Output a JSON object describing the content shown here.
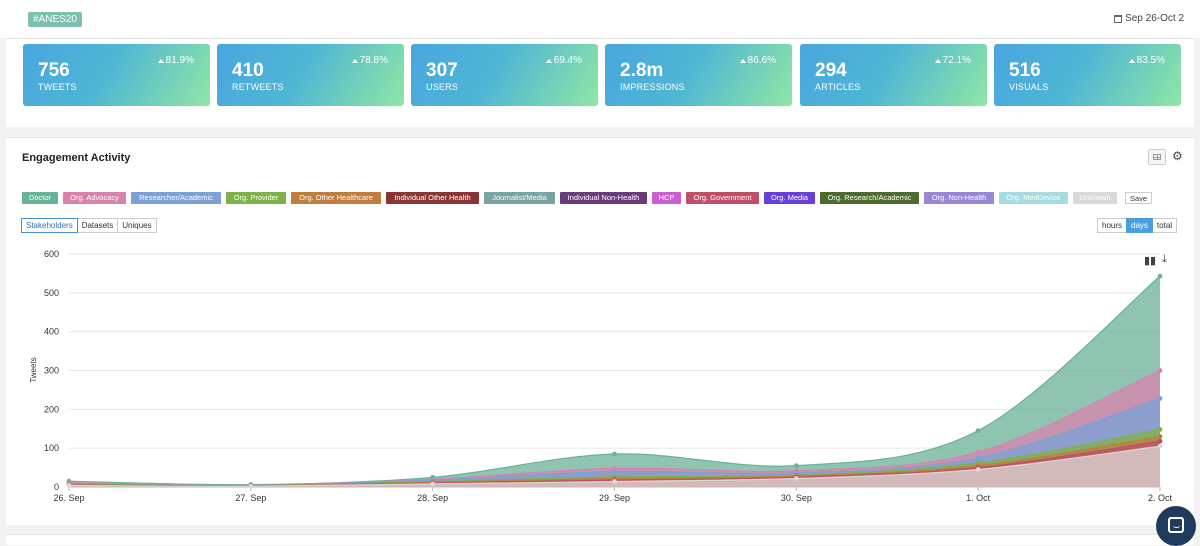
{
  "header": {
    "hashtag": "#ANES20",
    "date_range": "Sep 26-Oct 2",
    "calendar_icon": "calendar-icon"
  },
  "stats": [
    {
      "value": "756",
      "label": "TWEETS",
      "change": "81.9%"
    },
    {
      "value": "410",
      "label": "RETWEETS",
      "change": "78.8%"
    },
    {
      "value": "307",
      "label": "USERS",
      "change": "69.4%"
    },
    {
      "value": "2.8m",
      "label": "IMPRESSIONS",
      "change": "86.6%"
    },
    {
      "value": "294",
      "label": "ARTICLES",
      "change": "72.1%"
    },
    {
      "value": "516",
      "label": "VISUALS",
      "change": "83.5%"
    }
  ],
  "engagement": {
    "title": "Engagement Activity",
    "legend": [
      {
        "label": "Doctor",
        "color": "#6ab295"
      },
      {
        "label": "Org. Advocacy",
        "color": "#d882ad"
      },
      {
        "label": "Researcher/Academic",
        "color": "#7ba1d6"
      },
      {
        "label": "Org. Provider",
        "color": "#7db346"
      },
      {
        "label": "Org. Other Healthcare",
        "color": "#c07e3e"
      },
      {
        "label": "Individual Other Health",
        "color": "#8a3434"
      },
      {
        "label": "Journalist/Media",
        "color": "#79a3a3"
      },
      {
        "label": "Individual Non-Health",
        "color": "#6b3a78"
      },
      {
        "label": "HCP",
        "color": "#c95fd0"
      },
      {
        "label": "Org. Government",
        "color": "#c04d6a"
      },
      {
        "label": "Org. Media",
        "color": "#6a3fd8"
      },
      {
        "label": "Org. Research/Academic",
        "color": "#4d6b2c"
      },
      {
        "label": "Org. Non-Health",
        "color": "#9886d8"
      },
      {
        "label": "Org. MedDevice",
        "color": "#a6dbe0"
      },
      {
        "label": "Unknown",
        "color": "#d9d9d9"
      }
    ],
    "save_label": "Save",
    "view_tabs": [
      "Stakeholders",
      "Datasets",
      "Uniques"
    ],
    "active_view": "Stakeholders",
    "granularity": [
      "hours",
      "days",
      "total"
    ],
    "active_granularity": "days"
  },
  "chart_data": {
    "type": "area",
    "stacked": true,
    "ylabel": "Tweets",
    "xlabel": "",
    "categories": [
      "26. Sep",
      "27. Sep",
      "28. Sep",
      "29. Sep",
      "30. Sep",
      "1. Oct",
      "2. Oct"
    ],
    "ylim": [
      0,
      600
    ],
    "yticks": [
      0,
      100,
      200,
      300,
      400,
      500,
      600
    ],
    "grid": true,
    "series_stack_totals": [
      {
        "name": "Unknown",
        "values": [
          4,
          2,
          8,
          14,
          22,
          45,
          105
        ]
      },
      {
        "name": "Org. Government",
        "values": [
          5,
          3,
          10,
          18,
          25,
          50,
          118
        ]
      },
      {
        "name": "Org. Other Healthcare",
        "values": [
          6,
          3,
          12,
          22,
          28,
          55,
          130
        ]
      },
      {
        "name": "Org. Provider",
        "values": [
          7,
          4,
          14,
          26,
          30,
          62,
          148
        ]
      },
      {
        "name": "Researcher/Academic",
        "values": [
          9,
          5,
          18,
          40,
          36,
          75,
          228
        ]
      },
      {
        "name": "Org. Advocacy",
        "values": [
          11,
          5,
          20,
          48,
          42,
          90,
          300
        ]
      },
      {
        "name": "Doctor",
        "values": [
          15,
          6,
          25,
          85,
          55,
          145,
          543
        ]
      }
    ],
    "toolbar_icons": [
      "bar-chart-icon",
      "download-icon"
    ]
  }
}
